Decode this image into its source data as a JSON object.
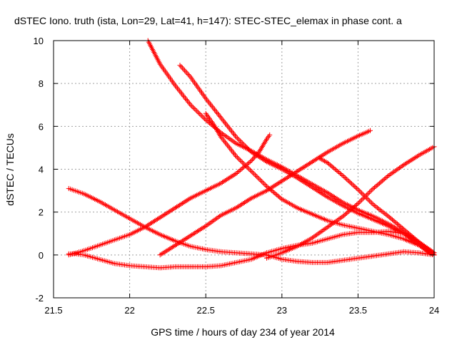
{
  "chart_data": {
    "type": "scatter",
    "title": "dSTEC Iono. truth (ista, Lon=29, Lat=41, h=147): STEC-STEC_elemax in phase cont. a",
    "xlabel": "GPS time / hours of day 234 of year 2014",
    "ylabel": "dSTEC  / TECUs",
    "xlim": [
      21.5,
      24
    ],
    "ylim": [
      -2,
      10
    ],
    "xticks": [
      21.5,
      22,
      22.5,
      23,
      23.5,
      24
    ],
    "xtick_labels": [
      "21.5",
      "22",
      "22.5",
      "23",
      "23.5",
      "24"
    ],
    "yticks": [
      -2,
      0,
      2,
      4,
      6,
      8,
      10
    ],
    "ytick_labels": [
      "-2",
      "0",
      "2",
      "4",
      "6",
      "8",
      "10"
    ],
    "grid": true,
    "marker": "plus",
    "color": "#ff0000",
    "series": [
      {
        "x": [
          21.6,
          21.65,
          21.7,
          21.8,
          21.9,
          22.0,
          22.1,
          22.2,
          22.3,
          22.4,
          22.5,
          22.6,
          22.7,
          22.8,
          22.9,
          23.0,
          23.1,
          23.2,
          23.3,
          23.4,
          23.5,
          23.6,
          23.7,
          23.8,
          23.9,
          23.95,
          24.0
        ],
        "y": [
          0.05,
          0.05,
          0.0,
          -0.2,
          -0.4,
          -0.5,
          -0.55,
          -0.6,
          -0.55,
          -0.55,
          -0.55,
          -0.5,
          -0.35,
          -0.2,
          0.1,
          0.3,
          0.45,
          0.55,
          0.75,
          0.95,
          1.05,
          1.05,
          1.1,
          1.0,
          0.5,
          0.2,
          0.0
        ]
      },
      {
        "x": [
          21.6,
          21.7,
          21.8,
          21.9,
          22.0,
          22.1,
          22.2,
          22.3,
          22.4,
          22.5,
          22.6,
          22.7,
          22.8,
          22.85,
          22.9,
          22.92
        ],
        "y": [
          0.0,
          0.2,
          0.45,
          0.7,
          0.95,
          1.3,
          1.75,
          2.2,
          2.65,
          3.0,
          3.35,
          3.8,
          4.4,
          4.8,
          5.4,
          5.6
        ]
      },
      {
        "x": [
          21.6,
          21.7,
          21.8,
          21.9,
          22.0,
          22.1,
          22.2,
          22.3,
          22.4,
          22.5,
          22.6,
          22.7,
          22.8,
          22.9,
          23.0,
          23.1,
          23.2,
          23.3,
          23.4,
          23.5,
          23.6,
          23.7,
          23.8,
          23.9,
          24.0
        ],
        "y": [
          3.1,
          2.85,
          2.5,
          2.1,
          1.7,
          1.3,
          0.95,
          0.65,
          0.4,
          0.25,
          0.15,
          0.1,
          0.05,
          0.0,
          -0.2,
          -0.3,
          -0.35,
          -0.35,
          -0.25,
          -0.15,
          -0.05,
          0.05,
          0.15,
          0.1,
          0.0
        ]
      },
      {
        "x": [
          22.12,
          22.2,
          22.3,
          22.4,
          22.5,
          22.6,
          22.7,
          22.8,
          22.9,
          23.0,
          23.1,
          23.2,
          23.3,
          23.4,
          23.5,
          23.6,
          23.7,
          23.8,
          23.9,
          24.0
        ],
        "y": [
          10.0,
          8.9,
          7.9,
          7.0,
          6.3,
          5.7,
          5.2,
          4.85,
          4.45,
          4.1,
          3.7,
          3.3,
          2.9,
          2.45,
          2.1,
          1.8,
          1.45,
          1.05,
          0.6,
          0.1
        ]
      },
      {
        "x": [
          22.2,
          22.3,
          22.4,
          22.5,
          22.6,
          22.7,
          22.8,
          22.9,
          23.0,
          23.1,
          23.2,
          23.3,
          23.4,
          23.5,
          23.58
        ],
        "y": [
          0.0,
          0.45,
          0.9,
          1.35,
          1.85,
          2.2,
          2.65,
          3.0,
          3.45,
          3.9,
          4.35,
          4.8,
          5.2,
          5.55,
          5.8
        ]
      },
      {
        "x": [
          22.33,
          22.4,
          22.5,
          22.6,
          22.7,
          22.8,
          22.9,
          23.0,
          23.1,
          23.2,
          23.3,
          23.4,
          23.5,
          23.6,
          23.7,
          23.8,
          23.9,
          24.0
        ],
        "y": [
          8.85,
          8.3,
          7.3,
          6.4,
          5.5,
          4.8,
          4.35,
          4.0,
          3.6,
          3.15,
          2.7,
          2.3,
          1.95,
          1.65,
          1.35,
          1.0,
          0.55,
          0.1
        ]
      },
      {
        "x": [
          22.5,
          22.55,
          22.6,
          22.7,
          22.8,
          22.9,
          23.0,
          23.1,
          23.2,
          23.3,
          23.4,
          23.5,
          23.6,
          23.7,
          23.8,
          23.9,
          24.0
        ],
        "y": [
          6.6,
          6.1,
          5.5,
          4.6,
          3.9,
          3.2,
          2.6,
          2.2,
          1.9,
          1.6,
          1.4,
          1.25,
          1.1,
          0.95,
          0.75,
          0.45,
          0.0
        ]
      },
      {
        "x": [
          22.9,
          23.0,
          23.1,
          23.2,
          23.3,
          23.4,
          23.5,
          23.6,
          23.7,
          23.8,
          23.9,
          24.0
        ],
        "y": [
          -0.15,
          0.1,
          0.4,
          0.8,
          1.3,
          1.8,
          2.4,
          3.1,
          3.7,
          4.2,
          4.65,
          5.05
        ]
      },
      {
        "x": [
          23.25,
          23.3,
          23.4,
          23.5,
          23.6,
          23.7,
          23.8,
          23.9,
          24.0
        ],
        "y": [
          4.5,
          4.3,
          3.7,
          3.05,
          2.35,
          1.8,
          1.2,
          0.6,
          0.0
        ]
      }
    ]
  }
}
